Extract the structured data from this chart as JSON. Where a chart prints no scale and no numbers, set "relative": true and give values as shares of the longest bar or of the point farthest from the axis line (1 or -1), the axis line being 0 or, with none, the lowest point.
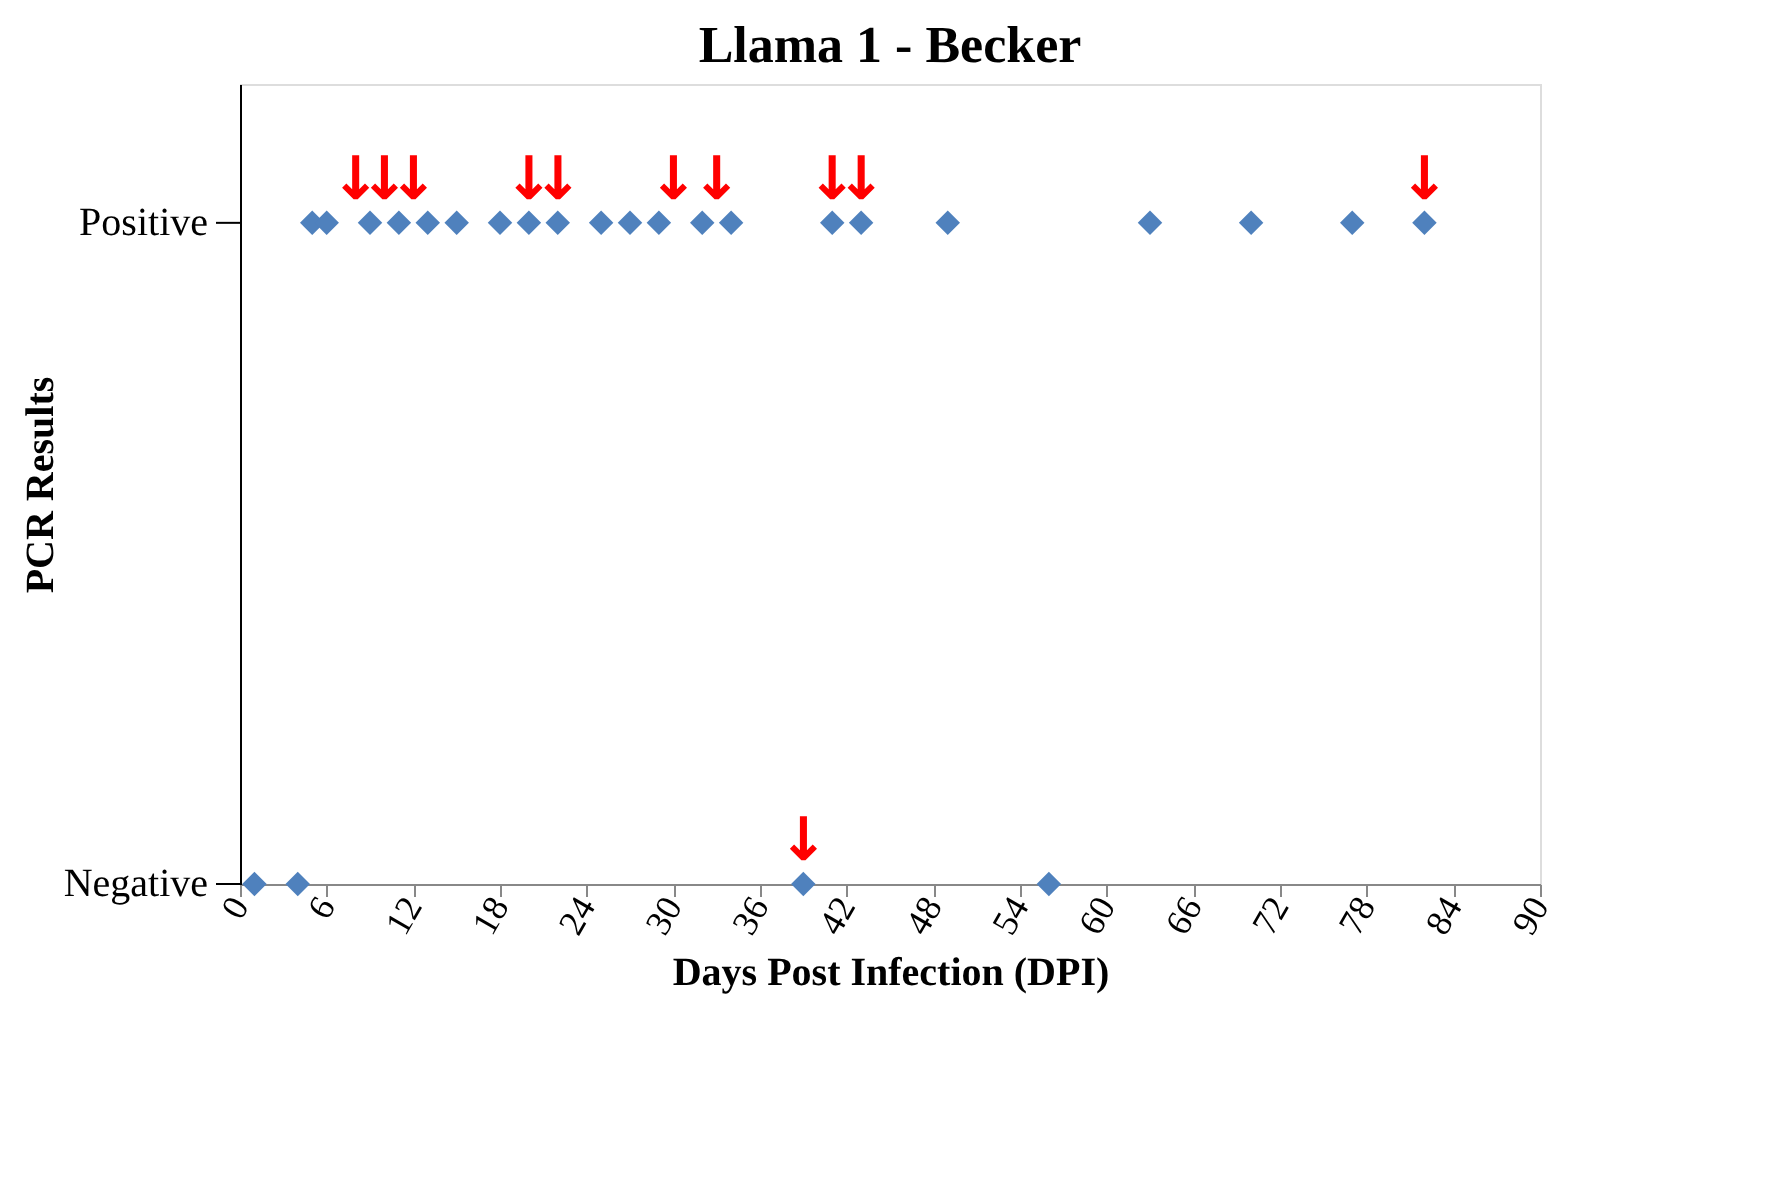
{
  "chart_data": {
    "type": "scatter",
    "title": "Llama 1 - Becker",
    "xlabel": "Days Post Infection (DPI)",
    "ylabel": "PCR Results",
    "xlim": [
      0,
      90
    ],
    "xticks": [
      0,
      6,
      12,
      18,
      24,
      30,
      36,
      42,
      48,
      54,
      60,
      66,
      72,
      78,
      84,
      90
    ],
    "relative": true,
    "annotations": [
      "Positive",
      "Negative",
      {
        "text": "↓",
        "x": 8,
        "y": 1
      },
      {
        "text": "↓",
        "x": 10,
        "y": 1
      },
      {
        "text": "↓",
        "x": 12,
        "y": 1
      },
      {
        "text": "↓",
        "x": 20,
        "y": 1
      },
      {
        "text": "↓",
        "x": 22,
        "y": 1
      },
      {
        "text": "↓",
        "x": 30,
        "y": 1
      },
      {
        "text": "↓",
        "x": 33,
        "y": 1
      },
      {
        "text": "↓",
        "x": 39,
        "y": 0
      },
      {
        "text": "↓",
        "x": 41,
        "y": 1
      },
      {
        "text": "↓",
        "x": 43,
        "y": 1
      },
      {
        "text": "↓",
        "x": 82,
        "y": 1
      }
    ],
    "grid": false,
    "series": [
      {
        "color": "#4f81bd",
        "marker": "diamond",
        "x": [
          1,
          4,
          5,
          6,
          9,
          11,
          13,
          15,
          18,
          20,
          22,
          25,
          27,
          29,
          32,
          34,
          39,
          41,
          43,
          49,
          56,
          63,
          70,
          77,
          82
        ],
        "values": [
          0,
          0,
          1,
          1,
          1,
          1,
          1,
          1,
          1,
          1,
          1,
          1,
          1,
          1,
          1,
          1,
          0,
          1,
          1,
          1,
          0,
          1,
          1,
          1,
          1
        ]
      }
    ]
  }
}
